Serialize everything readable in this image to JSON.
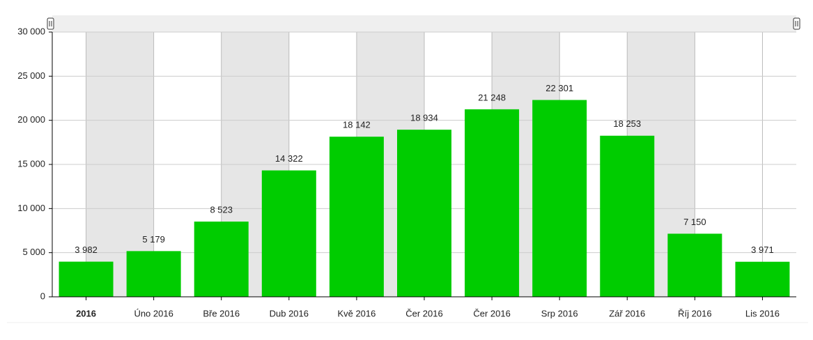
{
  "chart_data": {
    "type": "bar",
    "categories": [
      "2016",
      "Úno 2016",
      "Bře 2016",
      "Dub 2016",
      "Kvě 2016",
      "Čer 2016",
      "Čer 2016",
      "Srp 2016",
      "Zář 2016",
      "Říj 2016",
      "Lis 2016"
    ],
    "values": [
      3982,
      5179,
      8523,
      14322,
      18142,
      18934,
      21248,
      22301,
      18253,
      7150,
      3971
    ],
    "value_labels": [
      "3 982",
      "5 179",
      "8 523",
      "14 322",
      "18 142",
      "18 934",
      "21 248",
      "22 301",
      "18 253",
      "7 150",
      "3 971"
    ],
    "color": "#00cc00",
    "ylim": [
      0,
      30000
    ],
    "yticks": [
      0,
      {
        "value": 5000,
        "label": "5 000"
      },
      {
        "value": 10000,
        "label": "10 000"
      },
      {
        "value": 15000,
        "label": "15 000"
      },
      {
        "value": 20000,
        "label": "20 000"
      },
      {
        "value": 25000,
        "label": "25 000"
      },
      {
        "value": 30000,
        "label": "30 000"
      }
    ],
    "grid": true
  }
}
